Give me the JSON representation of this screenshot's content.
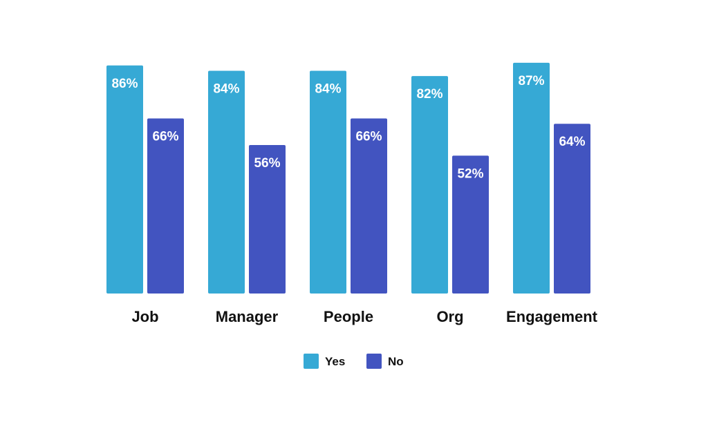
{
  "chart_data": {
    "type": "bar",
    "title": "",
    "xlabel": "",
    "ylabel": "",
    "categories": [
      "Job",
      "Manager",
      "People",
      "Org",
      "Engagement"
    ],
    "series": [
      {
        "name": "Yes",
        "color": "#36a9d5",
        "values": [
          86,
          84,
          84,
          82,
          87
        ],
        "labels": [
          "86%",
          "84%",
          "84%",
          "82%",
          "87%"
        ]
      },
      {
        "name": "No",
        "color": "#4254c0",
        "values": [
          66,
          56,
          66,
          52,
          64
        ],
        "labels": [
          "66%",
          "56%",
          "66%",
          "52%",
          "64%"
        ]
      }
    ],
    "ylim": [
      0,
      100
    ],
    "grid": false,
    "legend_position": "bottom-center",
    "legend": [
      {
        "label": "Yes",
        "color": "#36a9d5"
      },
      {
        "label": "No",
        "color": "#4254c0"
      }
    ]
  }
}
